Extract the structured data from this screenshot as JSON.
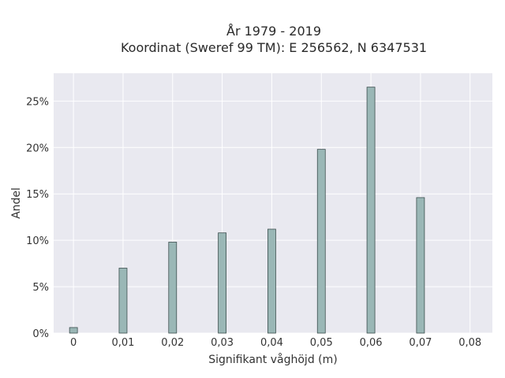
{
  "chart_data": {
    "type": "bar",
    "title_line1": "År 1979 - 2019",
    "title_line2": "Koordinat (Sweref 99 TM): E 256562, N 6347531",
    "xlabel": "Signifikant våghöjd (m)",
    "ylabel": "Andel",
    "x": [
      0,
      0.01,
      0.02,
      0.03,
      0.04,
      0.05,
      0.06,
      0.07
    ],
    "values": [
      0.6,
      7.0,
      9.8,
      10.8,
      11.2,
      19.8,
      26.5,
      14.6
    ],
    "xlim": [
      -0.004,
      0.0845
    ],
    "ylim": [
      0,
      28
    ],
    "x_ticks": [
      0,
      0.01,
      0.02,
      0.03,
      0.04,
      0.05,
      0.06,
      0.07,
      0.08
    ],
    "x_tick_labels": [
      "0",
      "0,01",
      "0,02",
      "0,03",
      "0,04",
      "0,05",
      "0,06",
      "0,07",
      "0,08"
    ],
    "y_ticks": [
      0,
      5,
      10,
      15,
      20,
      25
    ],
    "y_tick_labels": [
      "0%",
      "5%",
      "10%",
      "15%",
      "20%",
      "25%"
    ],
    "grid": true,
    "colors": {
      "background": "#e9e9f0",
      "bar_fill": "#9ab7b6",
      "bar_stroke": "#3c4e4e",
      "grid": "#ffffff"
    }
  }
}
